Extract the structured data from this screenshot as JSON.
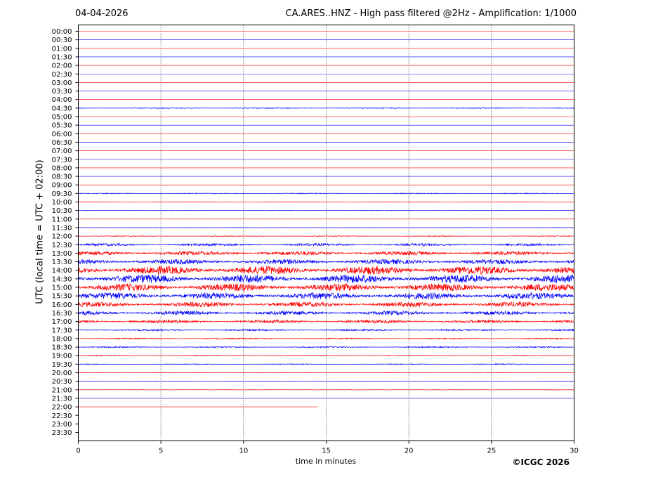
{
  "header": {
    "date": "04-04-2026",
    "title": "CA.ARES..HNZ - High pass filtered @2Hz - Amplification: 1/1000"
  },
  "footer": {
    "copyright": "©ICGC 2026"
  },
  "chart_data": {
    "type": "line",
    "xlabel": "time in minutes",
    "ylabel": "UTC (local time = UTC + 02:00)",
    "xlim": [
      0,
      30
    ],
    "xticks": [
      0,
      5,
      10,
      15,
      20,
      25,
      30
    ],
    "grid": "vertical dotted lines at 5-minute intervals",
    "colors": {
      "even_rows": "#ff0000",
      "odd_rows": "#0000ff"
    },
    "row_labels": [
      "00:00",
      "00:30",
      "01:00",
      "01:30",
      "02:00",
      "02:30",
      "03:00",
      "03:30",
      "04:00",
      "04:30",
      "05:00",
      "05:30",
      "06:00",
      "06:30",
      "07:00",
      "07:30",
      "08:00",
      "08:30",
      "09:00",
      "09:30",
      "10:00",
      "10:30",
      "11:00",
      "11:30",
      "12:00",
      "12:30",
      "13:00",
      "13:30",
      "14:00",
      "14:30",
      "15:00",
      "15:30",
      "16:00",
      "16:30",
      "17:00",
      "17:30",
      "18:00",
      "18:30",
      "19:00",
      "19:30",
      "20:00",
      "20:30",
      "21:00",
      "21:30",
      "22:00",
      "22:30",
      "23:00",
      "23:30"
    ],
    "trace_amplitude": [
      0,
      0,
      0,
      0,
      0,
      0,
      0,
      0,
      0,
      0.2,
      0,
      0,
      0,
      0,
      0,
      0,
      0,
      0,
      0,
      0.2,
      0.1,
      0.1,
      0,
      0.1,
      0.2,
      0.6,
      1.0,
      1.2,
      2.0,
      2.0,
      1.8,
      1.6,
      1.2,
      1.0,
      0.8,
      0.4,
      0.3,
      0.3,
      0.2,
      0.2,
      0.1,
      0.1,
      0.1,
      0,
      0,
      0,
      0,
      0
    ],
    "trace_end_minutes": [
      30,
      30,
      30,
      30,
      30,
      30,
      30,
      30,
      30,
      30,
      30,
      30,
      30,
      30,
      30,
      30,
      30,
      30,
      30,
      30,
      30,
      30,
      30,
      30,
      30,
      30,
      30,
      30,
      30,
      30,
      30,
      30,
      30,
      30,
      30,
      30,
      30,
      30,
      30,
      30,
      30,
      30,
      30,
      30,
      14.5,
      0,
      0,
      0
    ]
  }
}
